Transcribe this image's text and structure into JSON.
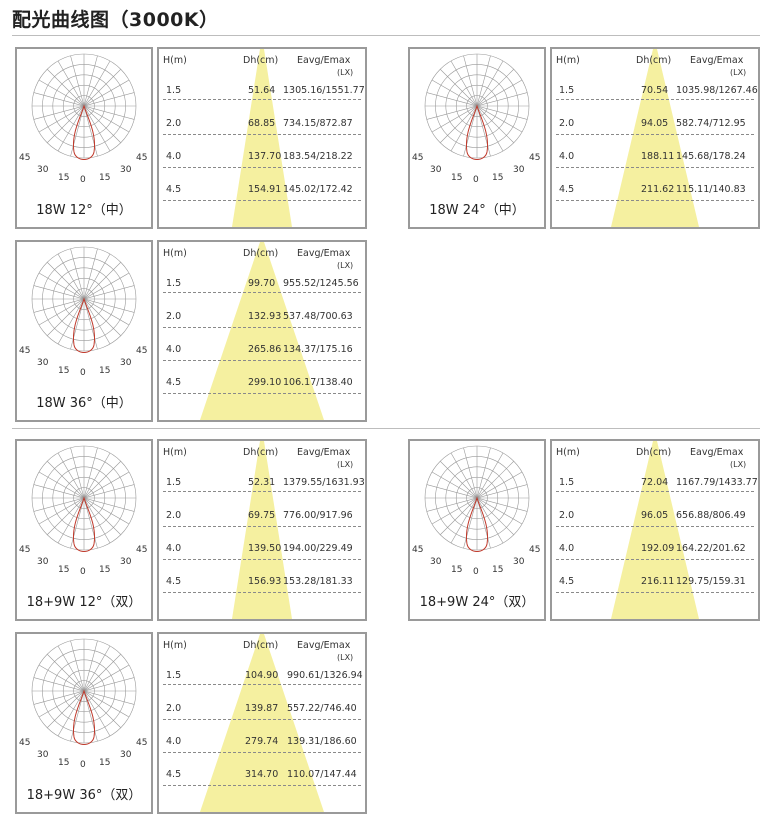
{
  "page_title": "配光曲线图（3000K）",
  "panels": [
    {
      "caption": "18W 12°（中）",
      "angle_labels": [
        "45",
        "30",
        "15",
        "0",
        "15",
        "30",
        "45"
      ],
      "table": {
        "h_header": "H(m)",
        "dh_header": "Dh(cm)",
        "e_header": "Eavg/Emax",
        "e_unit": "(LX)",
        "rows": [
          {
            "h": "1.5",
            "dh": "51.64",
            "e": "1305.16/1551.77"
          },
          {
            "h": "2.0",
            "dh": "68.85",
            "e": "734.15/872.87"
          },
          {
            "h": "4.0",
            "dh": "137.70",
            "e": "183.54/218.22"
          },
          {
            "h": "4.5",
            "dh": "154.91",
            "e": "145.02/172.42"
          }
        ]
      }
    },
    {
      "caption": "18W 24°（中）",
      "angle_labels": [
        "45",
        "30",
        "15",
        "0",
        "15",
        "30",
        "45"
      ],
      "table": {
        "h_header": "H(m)",
        "dh_header": "Dh(cm)",
        "e_header": "Eavg/Emax",
        "e_unit": "(LX)",
        "rows": [
          {
            "h": "1.5",
            "dh": "70.54",
            "e": "1035.98/1267.46"
          },
          {
            "h": "2.0",
            "dh": "94.05",
            "e": "582.74/712.95"
          },
          {
            "h": "4.0",
            "dh": "188.11",
            "e": "145.68/178.24"
          },
          {
            "h": "4.5",
            "dh": "211.62",
            "e": "115.11/140.83"
          }
        ]
      }
    },
    {
      "caption": "18W 36°（中）",
      "angle_labels": [
        "45",
        "30",
        "15",
        "0",
        "15",
        "30",
        "45"
      ],
      "table": {
        "h_header": "H(m)",
        "dh_header": "Dh(cm)",
        "e_header": "Eavg/Emax",
        "e_unit": "(LX)",
        "rows": [
          {
            "h": "1.5",
            "dh": "99.70",
            "e": "955.52/1245.56"
          },
          {
            "h": "2.0",
            "dh": "132.93",
            "e": "537.48/700.63"
          },
          {
            "h": "4.0",
            "dh": "265.86",
            "e": "134.37/175.16"
          },
          {
            "h": "4.5",
            "dh": "299.10",
            "e": "106.17/138.40"
          }
        ]
      }
    },
    {
      "caption": "18+9W 12°（双）",
      "angle_labels": [
        "45",
        "30",
        "15",
        "0",
        "15",
        "30",
        "45"
      ],
      "table": {
        "h_header": "H(m)",
        "dh_header": "Dh(cm)",
        "e_header": "Eavg/Emax",
        "e_unit": "(LX)",
        "rows": [
          {
            "h": "1.5",
            "dh": "52.31",
            "e": "1379.55/1631.93"
          },
          {
            "h": "2.0",
            "dh": "69.75",
            "e": "776.00/917.96"
          },
          {
            "h": "4.0",
            "dh": "139.50",
            "e": "194.00/229.49"
          },
          {
            "h": "4.5",
            "dh": "156.93",
            "e": "153.28/181.33"
          }
        ]
      }
    },
    {
      "caption": "18+9W 24°（双）",
      "angle_labels": [
        "45",
        "30",
        "15",
        "0",
        "15",
        "30",
        "45"
      ],
      "table": {
        "h_header": "H(m)",
        "dh_header": "Dh(cm)",
        "e_header": "Eavg/Emax",
        "e_unit": "(LX)",
        "rows": [
          {
            "h": "1.5",
            "dh": "72.04",
            "e": "1167.79/1433.77"
          },
          {
            "h": "2.0",
            "dh": "96.05",
            "e": "656.88/806.49"
          },
          {
            "h": "4.0",
            "dh": "192.09",
            "e": "164.22/201.62"
          },
          {
            "h": "4.5",
            "dh": "216.11",
            "e": "129.75/159.31"
          }
        ]
      }
    },
    {
      "caption": "18+9W 36°（双）",
      "angle_labels": [
        "45",
        "30",
        "15",
        "0",
        "15",
        "30",
        "45"
      ],
      "table": {
        "h_header": "H(m)",
        "dh_header": "Dh(cm)",
        "e_header": "Eavg/Emax",
        "e_unit": "(LX)",
        "rows": [
          {
            "h": "1.5",
            "dh": "104.90",
            "e": "990.61/1326.94"
          },
          {
            "h": "2.0",
            "dh": "139.87",
            "e": "557.22/746.40"
          },
          {
            "h": "4.0",
            "dh": "279.74",
            "e": "139.31/186.60"
          },
          {
            "h": "4.5",
            "dh": "314.70",
            "e": "110.07/147.44"
          }
        ]
      }
    }
  ],
  "colors": {
    "beam": "#f5f0a0",
    "curve": "#c0392b",
    "grid": "#999999",
    "border": "#9a9a9a"
  }
}
